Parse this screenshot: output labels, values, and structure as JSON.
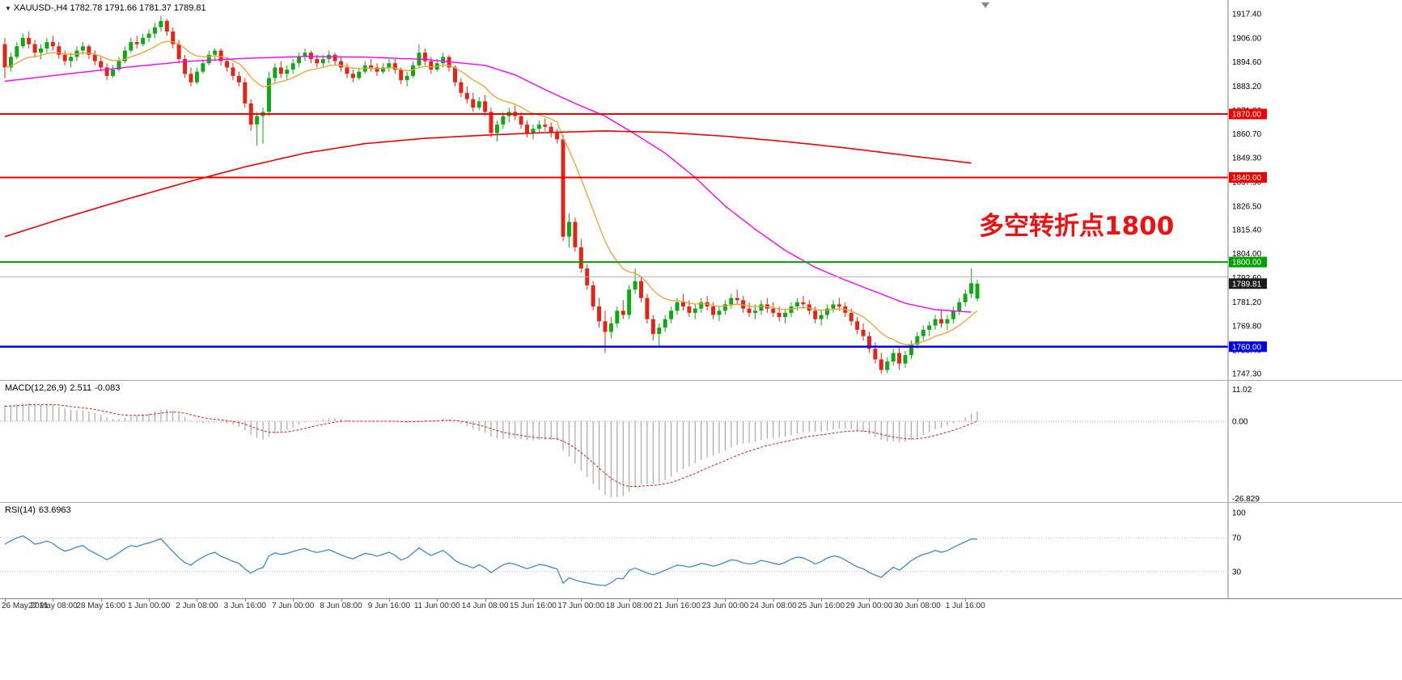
{
  "title": {
    "arrow": "▼",
    "symbol_timeframe": "XAUUSD-,H4",
    "open": "1782.78",
    "high": "1791.66",
    "low": "1781.37",
    "close": "1789.81"
  },
  "annotation": {
    "text": "多空转折点1800",
    "color": "#ee1111"
  },
  "chart_data": {
    "type": "candlestick",
    "symbol": "XAUUSD-",
    "timeframe": "H4",
    "colors": {
      "up": "#10a818",
      "down": "#e52418",
      "ma_fast": "#f0a030",
      "ma_mid": "#ff00ff",
      "ma_slow": "#f00000",
      "macd_hist": "#a8a8a8",
      "macd_signal": "#d02020",
      "rsi": "#2f80d0",
      "levels": "#b8b8b8",
      "axis": "#808080"
    },
    "price_axis": {
      "labels": [
        "1917.40",
        "1906.00",
        "1894.60",
        "1883.20",
        "1871.80",
        "1860.70",
        "1849.30",
        "1837.90",
        "1826.50",
        "1815.40",
        "1804.00",
        "1792.60",
        "1781.20",
        "1769.80",
        "1758.40",
        "1747.30"
      ]
    },
    "hlines": [
      {
        "price": 1870.0,
        "color": "#f20000",
        "width": 2,
        "label": "1870.00"
      },
      {
        "price": 1840.0,
        "color": "#f20000",
        "width": 2,
        "label": "1840.00"
      },
      {
        "price": 1800.0,
        "color": "#00a000",
        "width": 2,
        "label": "1800.00"
      },
      {
        "price": 1760.0,
        "color": "#0000f0",
        "width": 2.5,
        "label": "1760.00"
      },
      {
        "price": 1793.0,
        "color": "#b0b0b0",
        "width": 1,
        "label": null
      }
    ],
    "current": {
      "price": 1789.81,
      "label": "1789.81",
      "bg": "#1c1c1c"
    },
    "overlays": {
      "ma_fast": {
        "period": 13,
        "color": "#f0a030"
      },
      "ma_mid": {
        "color": "#ff00ff",
        "points": [
          [
            0,
            1885.5
          ],
          [
            10,
            1888.8
          ],
          [
            20,
            1892.0
          ],
          [
            30,
            1894.8
          ],
          [
            40,
            1896.3
          ],
          [
            50,
            1897.2
          ],
          [
            60,
            1896.9
          ],
          [
            70,
            1895.8
          ],
          [
            80,
            1893.0
          ],
          [
            85,
            1888.5
          ],
          [
            90,
            1881.5
          ],
          [
            95,
            1875.0
          ],
          [
            100,
            1869.0
          ],
          [
            105,
            1860.5
          ],
          [
            110,
            1851.5
          ],
          [
            115,
            1840.0
          ],
          [
            120,
            1826.5
          ],
          [
            125,
            1815.5
          ],
          [
            130,
            1805.5
          ],
          [
            135,
            1797.5
          ],
          [
            140,
            1791.5
          ],
          [
            145,
            1786.0
          ],
          [
            150,
            1780.5
          ],
          [
            155,
            1777.5
          ],
          [
            161,
            1776.3
          ]
        ]
      },
      "ma_slow": {
        "color": "#f00000",
        "points": [
          [
            0,
            1812
          ],
          [
            10,
            1821
          ],
          [
            20,
            1829.5
          ],
          [
            30,
            1837.5
          ],
          [
            40,
            1845
          ],
          [
            50,
            1851.5
          ],
          [
            60,
            1856
          ],
          [
            70,
            1858.5
          ],
          [
            80,
            1860
          ],
          [
            90,
            1861.2
          ],
          [
            100,
            1862
          ],
          [
            110,
            1861.3
          ],
          [
            120,
            1859.5
          ],
          [
            130,
            1857
          ],
          [
            140,
            1854
          ],
          [
            150,
            1850.5
          ],
          [
            161,
            1846.8
          ]
        ]
      }
    },
    "macd": {
      "name": "MACD(12,26,9)",
      "value": "2.511",
      "signal": "-0.083",
      "scale_labels": [
        "11.02",
        "0.00",
        "-26.829"
      ]
    },
    "rsi": {
      "name": "RSI(14)",
      "value": "63.6963",
      "levels": [
        100,
        70,
        30
      ]
    },
    "x_axis": {
      "labels": [
        {
          "text": "26 May 2021",
          "bar": 0
        },
        {
          "text": "27 May 08:00",
          "bar": 8
        },
        {
          "text": "28 May 16:00",
          "bar": 16
        },
        {
          "text": "1 Jun 00:00",
          "bar": 24
        },
        {
          "text": "2 Jun 08:00",
          "bar": 32
        },
        {
          "text": "3 Jun 16:00",
          "bar": 40
        },
        {
          "text": "7 Jun 00:00",
          "bar": 48
        },
        {
          "text": "8 Jun 08:00",
          "bar": 56
        },
        {
          "text": "9 Jun 16:00",
          "bar": 64
        },
        {
          "text": "11 Jun 00:00",
          "bar": 72
        },
        {
          "text": "14 Jun 08:00",
          "bar": 80
        },
        {
          "text": "15 Jun 16:00",
          "bar": 88
        },
        {
          "text": "17 Jun 00:00",
          "bar": 96
        },
        {
          "text": "18 Jun 08:00",
          "bar": 104
        },
        {
          "text": "21 Jun 16:00",
          "bar": 112
        },
        {
          "text": "23 Jun 00:00",
          "bar": 120
        },
        {
          "text": "24 Jun 08:00",
          "bar": 128
        },
        {
          "text": "25 Jun 16:00",
          "bar": 136
        },
        {
          "text": "29 Jun 00:00",
          "bar": 144
        },
        {
          "text": "30 Jun 08:00",
          "bar": 152
        },
        {
          "text": "1 Jul 16:00",
          "bar": 160
        }
      ]
    },
    "candles": [
      [
        1903,
        1906,
        1887,
        1892
      ],
      [
        1892,
        1899,
        1890,
        1897
      ],
      [
        1897,
        1904,
        1896,
        1902
      ],
      [
        1902,
        1908,
        1901,
        1906
      ],
      [
        1906,
        1909,
        1901,
        1903
      ],
      [
        1903,
        1905,
        1897,
        1899
      ],
      [
        1899,
        1903,
        1896,
        1901
      ],
      [
        1901,
        1906,
        1899,
        1904
      ],
      [
        1904,
        1907,
        1900,
        1902
      ],
      [
        1902,
        1904,
        1896,
        1898
      ],
      [
        1898,
        1900,
        1893,
        1895
      ],
      [
        1895,
        1899,
        1892,
        1897
      ],
      [
        1897,
        1902,
        1895,
        1900
      ],
      [
        1900,
        1904,
        1898,
        1902
      ],
      [
        1902,
        1903,
        1896,
        1898
      ],
      [
        1898,
        1900,
        1893,
        1895
      ],
      [
        1895,
        1897,
        1890,
        1892
      ],
      [
        1892,
        1894,
        1886,
        1888
      ],
      [
        1888,
        1893,
        1887,
        1891
      ],
      [
        1891,
        1897,
        1890,
        1895
      ],
      [
        1895,
        1902,
        1894,
        1900
      ],
      [
        1900,
        1906,
        1899,
        1904
      ],
      [
        1904,
        1907,
        1901,
        1903
      ],
      [
        1903,
        1908,
        1902,
        1906
      ],
      [
        1906,
        1910,
        1904,
        1908
      ],
      [
        1908,
        1913,
        1906,
        1911
      ],
      [
        1911,
        1916.4,
        1909,
        1914
      ],
      [
        1914,
        1915,
        1907,
        1909
      ],
      [
        1909,
        1911,
        1901,
        1903
      ],
      [
        1903,
        1905,
        1894,
        1896
      ],
      [
        1896,
        1898,
        1887,
        1889
      ],
      [
        1889,
        1892,
        1883,
        1885
      ],
      [
        1885,
        1892,
        1884,
        1890
      ],
      [
        1890,
        1896,
        1889,
        1894
      ],
      [
        1894,
        1900,
        1893,
        1898
      ],
      [
        1898,
        1901,
        1895,
        1900
      ],
      [
        1900,
        1901,
        1893,
        1895
      ],
      [
        1895,
        1897,
        1890,
        1892
      ],
      [
        1892,
        1894,
        1886,
        1888
      ],
      [
        1888,
        1890,
        1883,
        1885
      ],
      [
        1885,
        1887,
        1873,
        1875
      ],
      [
        1875,
        1877,
        1862,
        1865
      ],
      [
        1865,
        1871,
        1855,
        1869
      ],
      [
        1869,
        1873,
        1856,
        1871
      ],
      [
        1871,
        1890,
        1869,
        1887
      ],
      [
        1887,
        1894,
        1885,
        1892
      ],
      [
        1892,
        1895,
        1887,
        1889
      ],
      [
        1889,
        1893,
        1886,
        1891
      ],
      [
        1891,
        1896,
        1889,
        1894
      ],
      [
        1894,
        1899,
        1892,
        1897
      ],
      [
        1897,
        1901,
        1895,
        1899
      ],
      [
        1899,
        1900,
        1894,
        1896
      ],
      [
        1896,
        1898,
        1892,
        1894
      ],
      [
        1894,
        1898,
        1892,
        1896
      ],
      [
        1896,
        1900,
        1894,
        1898
      ],
      [
        1898,
        1899,
        1893,
        1895
      ],
      [
        1895,
        1897,
        1890,
        1892
      ],
      [
        1892,
        1894,
        1887,
        1889
      ],
      [
        1889,
        1891,
        1885,
        1887
      ],
      [
        1887,
        1892,
        1886,
        1890
      ],
      [
        1890,
        1895,
        1889,
        1893
      ],
      [
        1893,
        1896,
        1890,
        1892
      ],
      [
        1892,
        1894,
        1888,
        1890
      ],
      [
        1890,
        1894,
        1889,
        1892
      ],
      [
        1892,
        1896,
        1890,
        1894
      ],
      [
        1894,
        1896,
        1889,
        1891
      ],
      [
        1891,
        1892,
        1884,
        1886
      ],
      [
        1886,
        1890,
        1883,
        1888
      ],
      [
        1888,
        1895,
        1887,
        1893
      ],
      [
        1893,
        1903,
        1892,
        1899
      ],
      [
        1899,
        1901,
        1893,
        1895
      ],
      [
        1895,
        1897,
        1889,
        1891
      ],
      [
        1891,
        1896,
        1890,
        1894
      ],
      [
        1894,
        1899,
        1892,
        1897
      ],
      [
        1897,
        1898,
        1890,
        1892
      ],
      [
        1892,
        1893,
        1883,
        1885
      ],
      [
        1885,
        1887,
        1878,
        1880
      ],
      [
        1880,
        1883,
        1875,
        1877
      ],
      [
        1877,
        1880,
        1871,
        1873
      ],
      [
        1873,
        1878,
        1872,
        1876
      ],
      [
        1876,
        1879,
        1869,
        1871
      ],
      [
        1871,
        1873,
        1859,
        1861
      ],
      [
        1861,
        1867,
        1857,
        1865
      ],
      [
        1865,
        1871,
        1863,
        1869
      ],
      [
        1869,
        1873,
        1866,
        1871
      ],
      [
        1871,
        1874,
        1867,
        1869
      ],
      [
        1869,
        1871,
        1863,
        1865
      ],
      [
        1865,
        1867,
        1859,
        1861
      ],
      [
        1861,
        1865,
        1858,
        1863
      ],
      [
        1863,
        1867,
        1861,
        1865
      ],
      [
        1865,
        1868,
        1862,
        1864
      ],
      [
        1864,
        1866,
        1859,
        1861
      ],
      [
        1861,
        1863,
        1856,
        1858
      ],
      [
        1858,
        1860,
        1810,
        1812
      ],
      [
        1812,
        1823,
        1807,
        1819
      ],
      [
        1819,
        1821,
        1805,
        1807
      ],
      [
        1807,
        1811,
        1795,
        1797
      ],
      [
        1797,
        1799,
        1787,
        1789
      ],
      [
        1789,
        1791,
        1777,
        1779
      ],
      [
        1779,
        1783,
        1769,
        1772
      ],
      [
        1772,
        1777,
        1757,
        1767
      ],
      [
        1767,
        1774,
        1764,
        1771
      ],
      [
        1771,
        1779,
        1769,
        1777
      ],
      [
        1777,
        1782,
        1773,
        1775
      ],
      [
        1775,
        1789,
        1773,
        1787
      ],
      [
        1787,
        1797,
        1785,
        1791
      ],
      [
        1791,
        1793,
        1781,
        1783
      ],
      [
        1783,
        1785,
        1771,
        1773
      ],
      [
        1773,
        1775,
        1763,
        1766
      ],
      [
        1766,
        1771,
        1760,
        1769
      ],
      [
        1769,
        1775,
        1767,
        1773
      ],
      [
        1773,
        1779,
        1771,
        1777
      ],
      [
        1777,
        1783,
        1775,
        1781
      ],
      [
        1781,
        1785,
        1777,
        1779
      ],
      [
        1779,
        1782,
        1774,
        1776
      ],
      [
        1776,
        1780,
        1773,
        1778
      ],
      [
        1778,
        1783,
        1776,
        1781
      ],
      [
        1781,
        1784,
        1777,
        1779
      ],
      [
        1779,
        1781,
        1773,
        1775
      ],
      [
        1775,
        1779,
        1772,
        1777
      ],
      [
        1777,
        1782,
        1775,
        1780
      ],
      [
        1780,
        1785,
        1778,
        1783
      ],
      [
        1783,
        1787,
        1780,
        1782
      ],
      [
        1782,
        1784,
        1776,
        1778
      ],
      [
        1778,
        1781,
        1774,
        1776
      ],
      [
        1776,
        1780,
        1773,
        1777
      ],
      [
        1777,
        1782,
        1775,
        1780
      ],
      [
        1780,
        1783,
        1776,
        1778
      ],
      [
        1778,
        1781,
        1774,
        1776
      ],
      [
        1776,
        1779,
        1772,
        1774
      ],
      [
        1774,
        1778,
        1771,
        1776
      ],
      [
        1776,
        1781,
        1774,
        1779
      ],
      [
        1779,
        1783,
        1777,
        1781
      ],
      [
        1781,
        1784,
        1778,
        1780
      ],
      [
        1780,
        1782,
        1775,
        1777
      ],
      [
        1777,
        1779,
        1771,
        1773
      ],
      [
        1773,
        1777,
        1770,
        1775
      ],
      [
        1775,
        1780,
        1773,
        1778
      ],
      [
        1778,
        1782,
        1776,
        1780
      ],
      [
        1780,
        1783,
        1777,
        1779
      ],
      [
        1779,
        1781,
        1774,
        1776
      ],
      [
        1776,
        1778,
        1770,
        1772
      ],
      [
        1772,
        1774,
        1766,
        1768
      ],
      [
        1768,
        1771,
        1763,
        1765
      ],
      [
        1765,
        1767,
        1757,
        1759
      ],
      [
        1759,
        1762,
        1752,
        1754
      ],
      [
        1754,
        1757,
        1747.3,
        1749
      ],
      [
        1749,
        1755,
        1747.5,
        1753
      ],
      [
        1753,
        1759,
        1751,
        1757
      ],
      [
        1757,
        1760,
        1749,
        1752
      ],
      [
        1752,
        1758,
        1750,
        1756
      ],
      [
        1756,
        1763,
        1754,
        1761
      ],
      [
        1761,
        1767,
        1759,
        1765
      ],
      [
        1765,
        1770,
        1763,
        1768
      ],
      [
        1768,
        1772,
        1765,
        1770
      ],
      [
        1770,
        1775,
        1768,
        1773
      ],
      [
        1773,
        1777,
        1769,
        1771
      ],
      [
        1771,
        1775,
        1768,
        1773
      ],
      [
        1773,
        1779,
        1771,
        1777
      ],
      [
        1777,
        1783,
        1775,
        1781
      ],
      [
        1781,
        1787,
        1779,
        1785
      ],
      [
        1785,
        1797,
        1783,
        1790
      ],
      [
        1782.78,
        1791.66,
        1781.37,
        1789.81
      ]
    ]
  }
}
